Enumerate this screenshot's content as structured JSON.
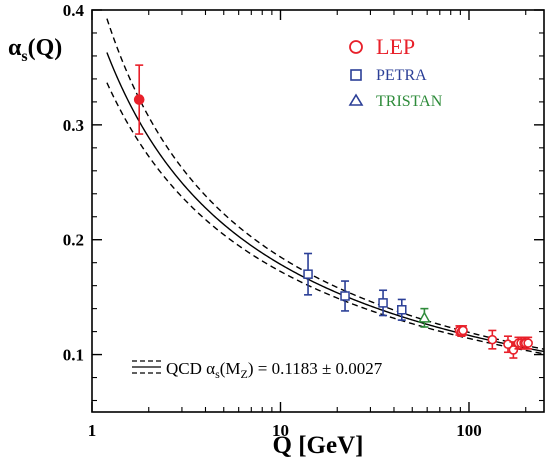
{
  "chart_data": {
    "type": "scatter",
    "xlabel": "Q [GeV]",
    "ylabel_main": "α",
    "ylabel_sub": "s",
    "ylabel_tail": "(Q)",
    "x_scale": "log",
    "xlim": [
      1,
      250
    ],
    "ylim": [
      0.05,
      0.4
    ],
    "x_ticks": [
      1,
      10,
      100
    ],
    "x_tick_labels": [
      "1",
      "10",
      "100"
    ],
    "y_ticks": [
      0.1,
      0.2,
      0.3,
      0.4
    ],
    "y_tick_labels": [
      "0.1",
      "0.2",
      "0.3",
      "0.4"
    ],
    "grid": false,
    "legend_position": "top-right",
    "colors": {
      "LEP": "#e8202a",
      "PETRA": "#2b3f97",
      "TRISTAN": "#2e8b3a",
      "curve": "#000000"
    },
    "series": [
      {
        "name": "LEP",
        "marker": "circle",
        "points": [
          {
            "x": 1.78,
            "y": 0.322,
            "err": 0.03,
            "filled": true
          },
          {
            "x": 89.0,
            "y": 0.121,
            "err": 0.004,
            "filled": false
          },
          {
            "x": 91.2,
            "y": 0.12,
            "err": 0.004,
            "filled": false
          },
          {
            "x": 93.0,
            "y": 0.121,
            "err": 0.004,
            "filled": false
          },
          {
            "x": 133.0,
            "y": 0.113,
            "err": 0.008,
            "filled": false
          },
          {
            "x": 161.0,
            "y": 0.109,
            "err": 0.007,
            "filled": false
          },
          {
            "x": 172.0,
            "y": 0.104,
            "err": 0.007,
            "filled": false
          },
          {
            "x": 183.0,
            "y": 0.11,
            "err": 0.005,
            "filled": false
          },
          {
            "x": 189.0,
            "y": 0.11,
            "err": 0.005,
            "filled": false
          },
          {
            "x": 196.0,
            "y": 0.11,
            "err": 0.005,
            "filled": false
          },
          {
            "x": 200.0,
            "y": 0.11,
            "err": 0.005,
            "filled": false
          },
          {
            "x": 206.0,
            "y": 0.11,
            "err": 0.005,
            "filled": false
          }
        ]
      },
      {
        "name": "PETRA",
        "marker": "square",
        "points": [
          {
            "x": 14.0,
            "y": 0.17,
            "err": 0.018
          },
          {
            "x": 22.0,
            "y": 0.151,
            "err": 0.013
          },
          {
            "x": 35.0,
            "y": 0.145,
            "err": 0.011
          },
          {
            "x": 44.0,
            "y": 0.139,
            "err": 0.009
          }
        ]
      },
      {
        "name": "TRISTAN",
        "marker": "triangle",
        "points": [
          {
            "x": 58.0,
            "y": 0.132,
            "err": 0.008
          }
        ]
      }
    ],
    "curve": {
      "label_prefix": "QCD α",
      "label_sub1": "s",
      "label_mid": "(M",
      "label_sub2": "Z",
      "label_tail": ") = 0.1183 ± 0.0027",
      "alpha_mz": 0.1183,
      "alpha_mz_err": 0.0027,
      "mz": 91.19
    }
  }
}
